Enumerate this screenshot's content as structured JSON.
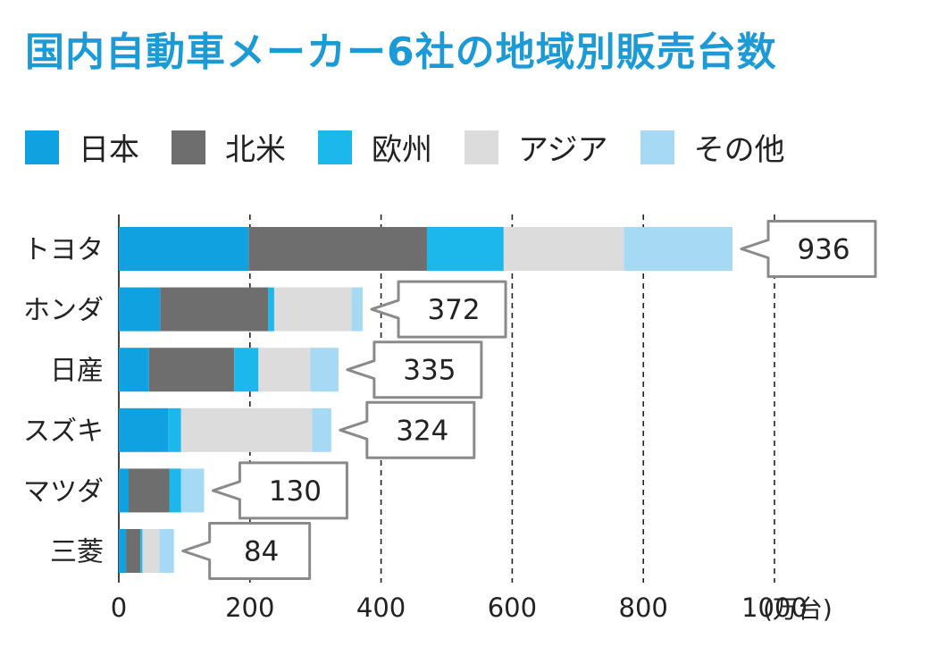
{
  "title": "国内自動車メーカー6社の地域別販売台数",
  "legend": [
    {
      "label": "日本",
      "color": "#0fa1e0"
    },
    {
      "label": "北米",
      "color": "#6e6e6e"
    },
    {
      "label": "欧州",
      "color": "#1db8eb"
    },
    {
      "label": "アジア",
      "color": "#dcdcdc"
    },
    {
      "label": "その他",
      "color": "#a6daf4"
    }
  ],
  "unit": "(万台)",
  "chart_data": {
    "type": "bar",
    "orientation": "horizontal",
    "stacked": true,
    "title": "国内自動車メーカー6社の地域別販売台数",
    "xlim": [
      0,
      1000
    ],
    "xticks": [
      "0",
      "200",
      "400",
      "600",
      "800",
      "1000"
    ],
    "xunit": "(万台)",
    "grid": "vertical dashed",
    "legend_position": "top",
    "categories": [
      "トヨタ",
      "ホンダ",
      "日産",
      "スズキ",
      "マツダ",
      "三菱"
    ],
    "totals": [
      936,
      372,
      335,
      324,
      130,
      84
    ],
    "total_labels": [
      "936",
      "372",
      "335",
      "324",
      "130",
      "84"
    ],
    "series": [
      {
        "name": "日本",
        "color": "#0fa1e0",
        "values": [
          198,
          63,
          46,
          75,
          15,
          11
        ]
      },
      {
        "name": "北米",
        "color": "#6e6e6e",
        "values": [
          272,
          165,
          130,
          0,
          62,
          22
        ]
      },
      {
        "name": "欧州",
        "color": "#1db8eb",
        "values": [
          117,
          9,
          37,
          20,
          18,
          3
        ]
      },
      {
        "name": "アジア",
        "color": "#dcdcdc",
        "values": [
          183,
          118,
          79,
          200,
          0,
          26
        ]
      },
      {
        "name": "その他",
        "color": "#a6daf4",
        "values": [
          166,
          17,
          43,
          29,
          35,
          22
        ]
      }
    ]
  }
}
